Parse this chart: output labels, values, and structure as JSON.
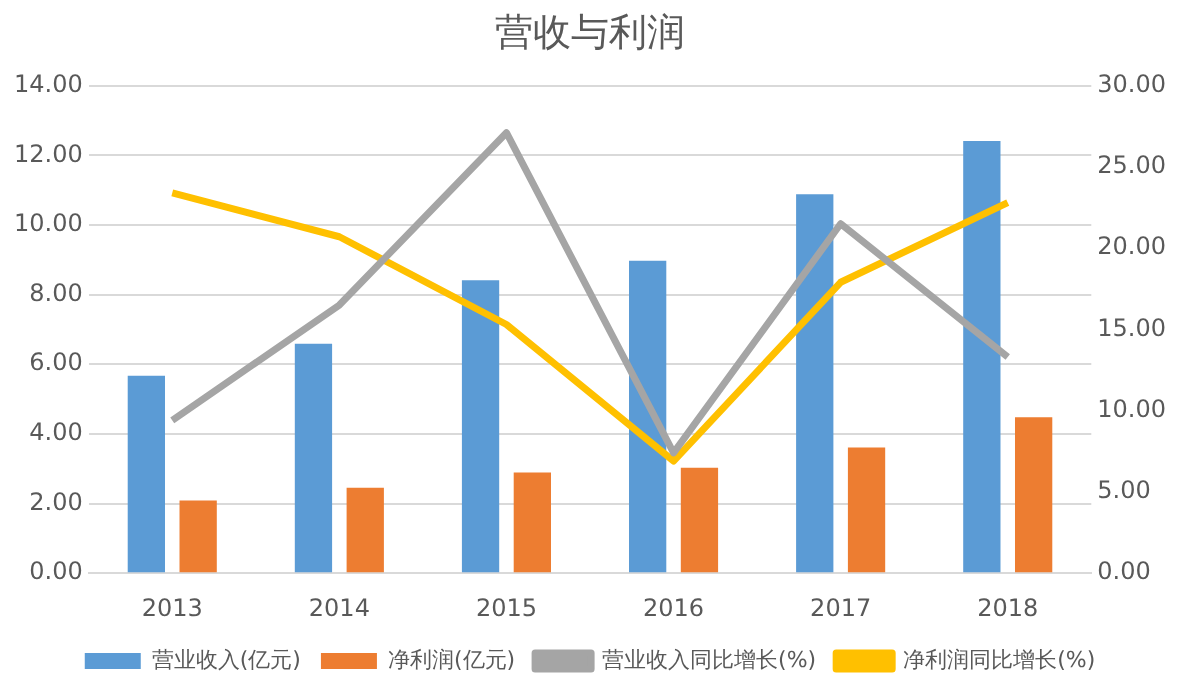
{
  "chart_data": {
    "type": "bar",
    "title": "营收与利润",
    "categories": [
      "2013",
      "2014",
      "2015",
      "2016",
      "2017",
      "2018"
    ],
    "series": [
      {
        "name": "营业收入(亿元)",
        "color": "#5b9bd5",
        "values": [
          5.67,
          6.59,
          8.41,
          8.97,
          10.88,
          12.41
        ]
      },
      {
        "name": "净利润(亿元)",
        "color": "#ed7d31",
        "values": [
          2.09,
          2.45,
          2.89,
          3.03,
          3.61,
          4.48
        ]
      },
      {
        "name": "营业收入同比增长(%)",
        "type": "line",
        "axis": "y2",
        "color": "#a5a5a5",
        "values": [
          9.4,
          16.5,
          27.1,
          7.4,
          21.5,
          13.3
        ]
      },
      {
        "name": "净利润同比增长(%)",
        "type": "line",
        "axis": "y2",
        "color": "#ffc000",
        "values": [
          23.4,
          20.7,
          15.3,
          6.9,
          17.9,
          22.8
        ]
      }
    ],
    "ylim": [
      0,
      14
    ],
    "yticks": [
      {
        "value": 0,
        "label": "0.00"
      },
      {
        "value": 2,
        "label": "2.00"
      },
      {
        "value": 4,
        "label": "4.00"
      },
      {
        "value": 6,
        "label": "6.00"
      },
      {
        "value": 8,
        "label": "8.00"
      },
      {
        "value": 10,
        "label": "10.00"
      },
      {
        "value": 12,
        "label": "12.00"
      },
      {
        "value": 14,
        "label": "14.00"
      }
    ],
    "y2lim": [
      0,
      30
    ],
    "y2ticks": [
      {
        "value": 0,
        "label": "0.00"
      },
      {
        "value": 5,
        "label": "5.00"
      },
      {
        "value": 10,
        "label": "10.00"
      },
      {
        "value": 15,
        "label": "15.00"
      },
      {
        "value": 20,
        "label": "20.00"
      },
      {
        "value": 25,
        "label": "25.00"
      },
      {
        "value": 30,
        "label": "30.00"
      }
    ],
    "grid": "y",
    "legend": "bottom",
    "marker": "none",
    "line_style": "solid"
  }
}
